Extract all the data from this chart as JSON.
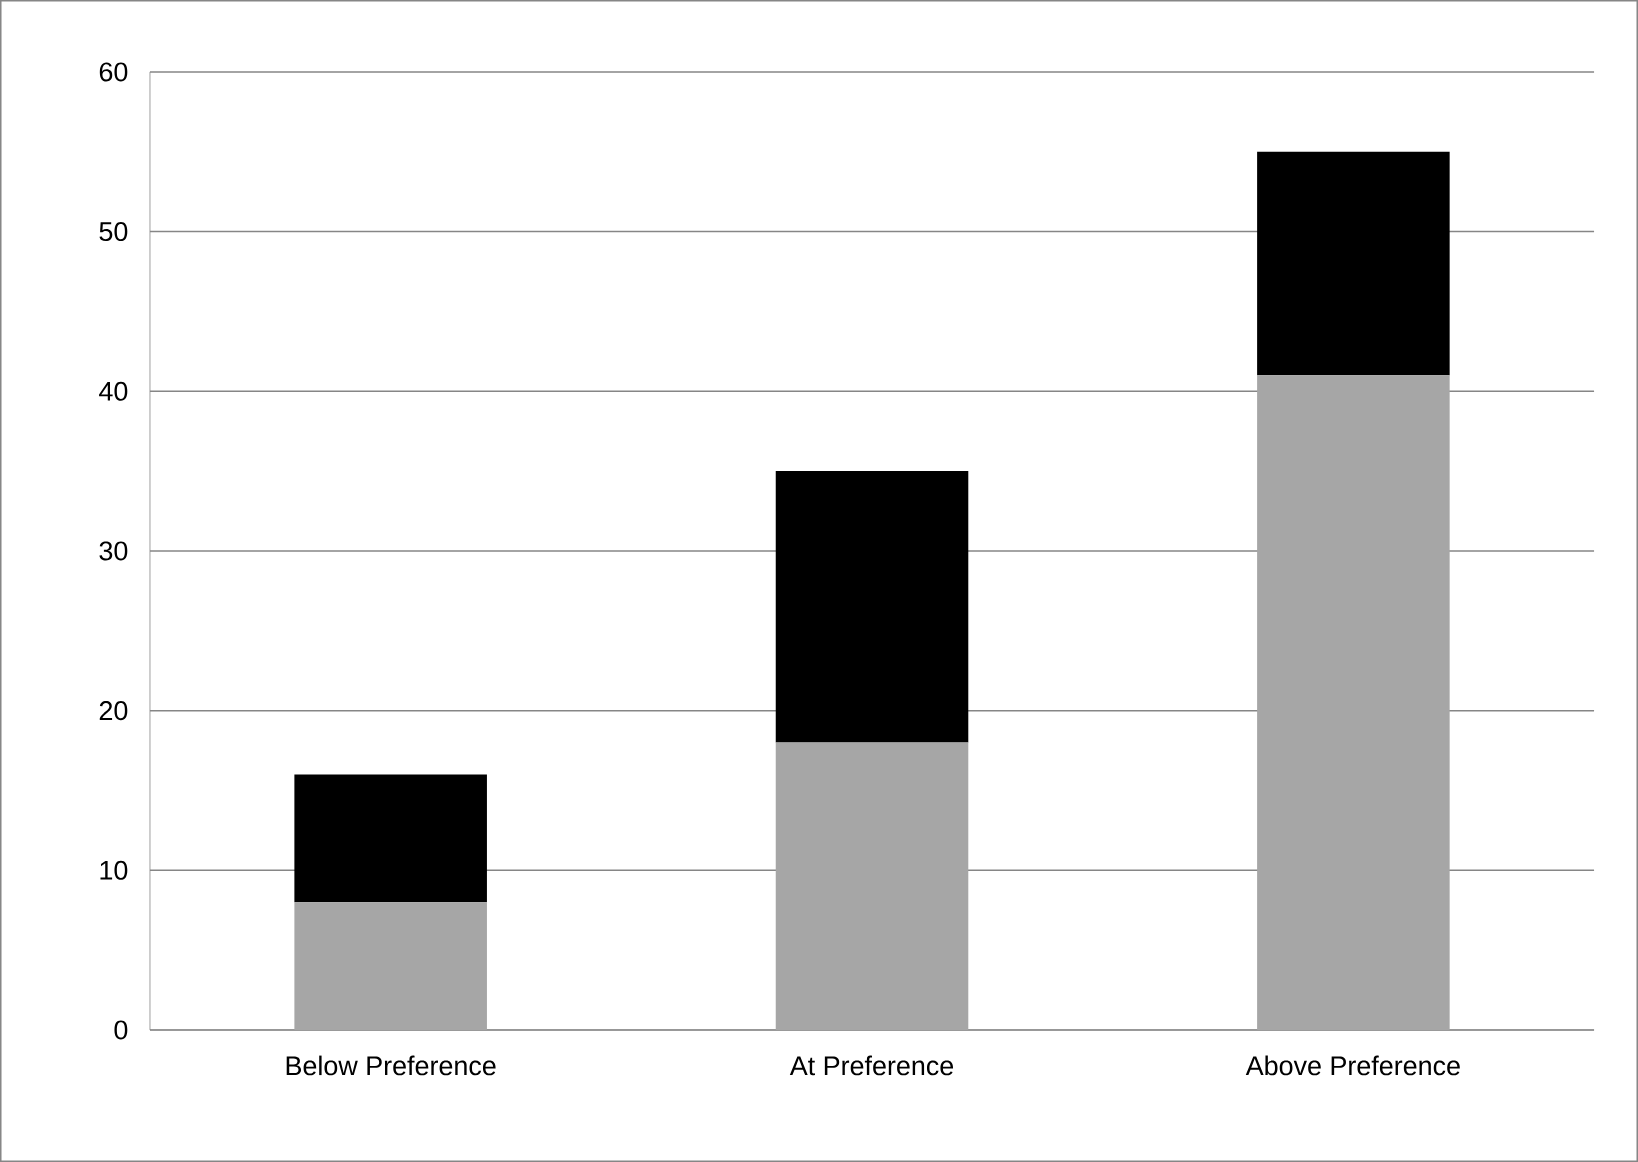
{
  "chart_data": {
    "type": "bar",
    "stacked": true,
    "categories": [
      "Below Preference",
      "At Preference",
      "Above Preference"
    ],
    "series": [
      {
        "color": "#a6a6a6",
        "values": [
          8,
          18,
          41
        ]
      },
      {
        "color": "#000000",
        "values": [
          8,
          17,
          14
        ]
      }
    ],
    "ylim": [
      0,
      60
    ],
    "yticks": [
      0,
      10,
      20,
      30,
      40,
      50,
      60
    ],
    "grid": "y"
  }
}
